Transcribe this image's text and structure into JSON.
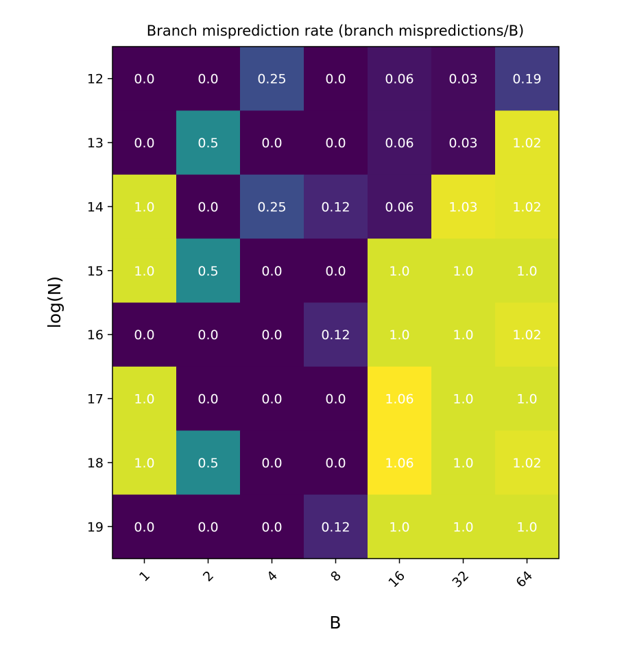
{
  "chart_data": {
    "type": "heatmap",
    "title": "Branch misprediction rate (branch mispredictions/B)",
    "xlabel": "B",
    "ylabel": "log(N)",
    "x_categories": [
      "1",
      "2",
      "4",
      "8",
      "16",
      "32",
      "64"
    ],
    "y_categories": [
      "12",
      "13",
      "14",
      "15",
      "16",
      "17",
      "18",
      "19"
    ],
    "values": [
      [
        0.0,
        0.0,
        0.25,
        0.0,
        0.06,
        0.03,
        0.19
      ],
      [
        0.0,
        0.5,
        0.0,
        0.0,
        0.06,
        0.03,
        1.02
      ],
      [
        1.0,
        0.0,
        0.25,
        0.12,
        0.06,
        1.03,
        1.02
      ],
      [
        1.0,
        0.5,
        0.0,
        0.0,
        1.0,
        1.0,
        1.0
      ],
      [
        0.0,
        0.0,
        0.0,
        0.12,
        1.0,
        1.0,
        1.02
      ],
      [
        1.0,
        0.0,
        0.0,
        0.0,
        1.06,
        1.0,
        1.0
      ],
      [
        1.0,
        0.5,
        0.0,
        0.0,
        1.06,
        1.0,
        1.02
      ],
      [
        0.0,
        0.0,
        0.0,
        0.12,
        1.0,
        1.0,
        1.0
      ]
    ],
    "labels": [
      [
        "0.0",
        "0.0",
        "0.25",
        "0.0",
        "0.06",
        "0.03",
        "0.19"
      ],
      [
        "0.0",
        "0.5",
        "0.0",
        "0.0",
        "0.06",
        "0.03",
        "1.02"
      ],
      [
        "1.0",
        "0.0",
        "0.25",
        "0.12",
        "0.06",
        "1.03",
        "1.02"
      ],
      [
        "1.0",
        "0.5",
        "0.0",
        "0.0",
        "1.0",
        "1.0",
        "1.0"
      ],
      [
        "0.0",
        "0.0",
        "0.0",
        "0.12",
        "1.0",
        "1.0",
        "1.02"
      ],
      [
        "1.0",
        "0.0",
        "0.0",
        "0.0",
        "1.06",
        "1.0",
        "1.0"
      ],
      [
        "1.0",
        "0.5",
        "0.0",
        "0.0",
        "1.06",
        "1.0",
        "1.02"
      ],
      [
        "0.0",
        "0.0",
        "0.0",
        "0.12",
        "1.0",
        "1.0",
        "1.0"
      ]
    ],
    "colormap": "viridis",
    "color_range": [
      0.0,
      1.06
    ],
    "grid": false,
    "x_tick_rotation": 45
  }
}
